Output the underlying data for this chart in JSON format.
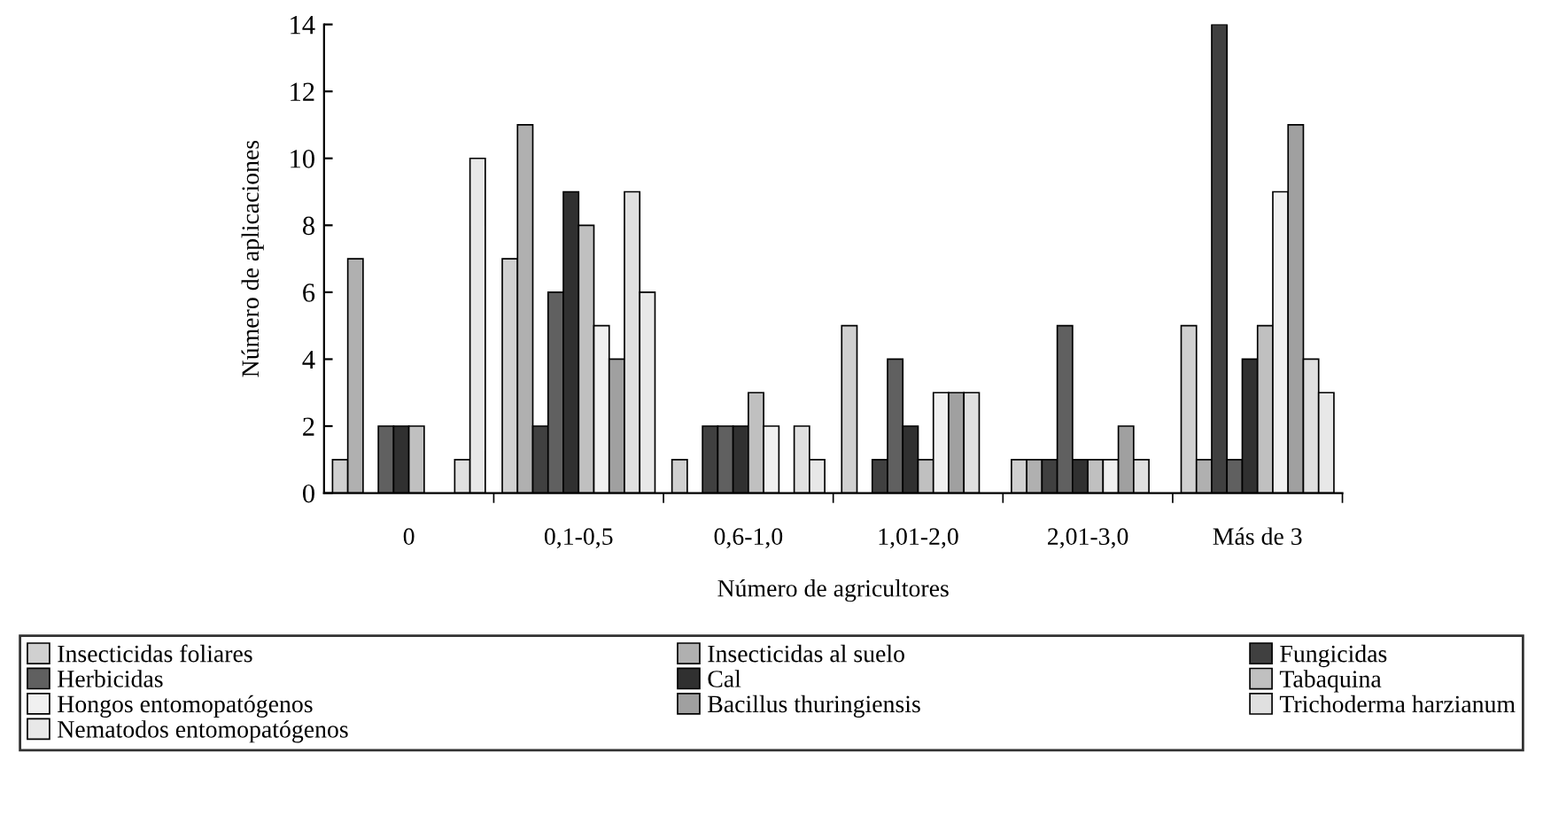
{
  "chart_data": {
    "type": "bar",
    "xlabel": "Número de agricultores",
    "ylabel": "Número de aplicaciones",
    "categories": [
      "0",
      "0,1-0,5",
      "0,6-1,0",
      "1,01-2,0",
      "2,01-3,0",
      "Más de 3"
    ],
    "ylim": [
      0,
      14
    ],
    "yticks": [
      0,
      2,
      4,
      6,
      8,
      10,
      12,
      14
    ],
    "grid": false,
    "legend": "bottom",
    "series": [
      {
        "name": "Insecticidas foliares",
        "color": "#d0d0d0",
        "values": [
          1,
          7,
          1,
          5,
          1,
          5
        ]
      },
      {
        "name": "Insecticidas al suelo",
        "color": "#b0b0b0",
        "values": [
          7,
          11,
          0,
          0,
          1,
          1
        ]
      },
      {
        "name": "Fungicidas",
        "color": "#404040",
        "values": [
          0,
          2,
          2,
          1,
          1,
          14
        ]
      },
      {
        "name": "Herbicidas",
        "color": "#606060",
        "values": [
          2,
          6,
          2,
          4,
          5,
          1
        ]
      },
      {
        "name": "Cal",
        "color": "#303030",
        "values": [
          2,
          9,
          2,
          2,
          1,
          4
        ]
      },
      {
        "name": "Tabaquina",
        "color": "#c0c0c0",
        "values": [
          2,
          8,
          3,
          1,
          1,
          5
        ]
      },
      {
        "name": "Hongos entomopatógenos",
        "color": "#f0f0f0",
        "values": [
          0,
          5,
          2,
          3,
          1,
          9
        ]
      },
      {
        "name": "Bacillus thuringiensis",
        "color": "#a0a0a0",
        "values": [
          0,
          4,
          0,
          3,
          2,
          11
        ]
      },
      {
        "name": "Trichoderma harzianum",
        "color": "#e0e0e0",
        "values": [
          1,
          9,
          2,
          3,
          1,
          4
        ]
      },
      {
        "name": "Nematodos entomopatógenos",
        "color": "#e8e8e8",
        "values": [
          10,
          6,
          1,
          0,
          0,
          3
        ]
      }
    ]
  }
}
